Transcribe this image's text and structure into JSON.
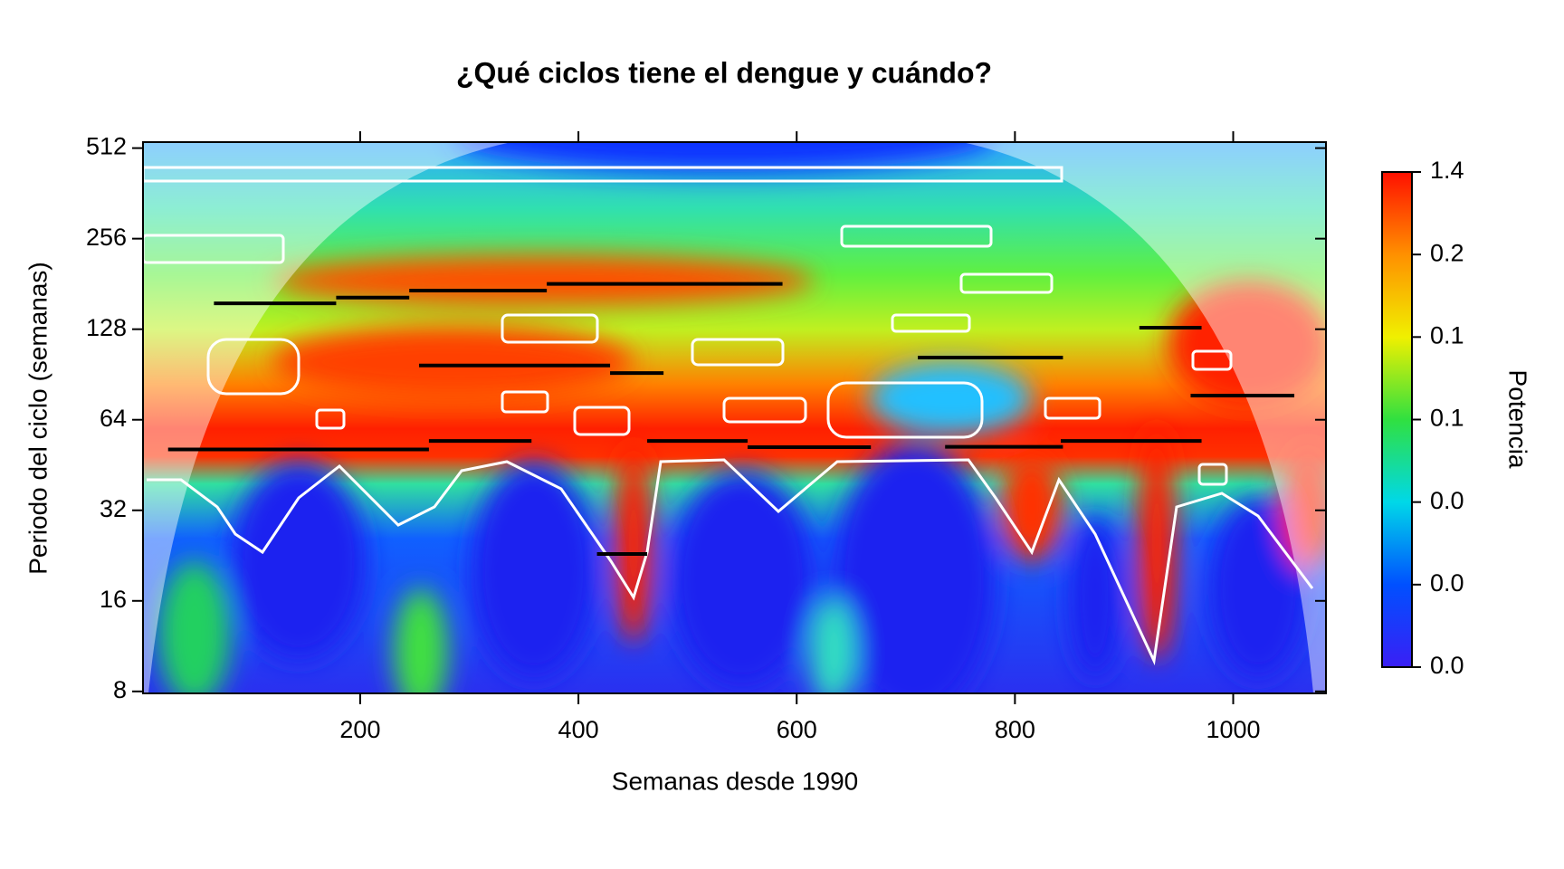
{
  "chart_data": {
    "type": "heatmap",
    "title": "¿Qué ciclos tiene el dengue y cuándo?",
    "x_label": "Semanas desde 1990",
    "y_label": "Periodo del ciclo (semanas)",
    "xlim": [
      1,
      1085
    ],
    "xticks": [
      200,
      400,
      600,
      800,
      1000
    ],
    "ylim": [
      7.88,
      536
    ],
    "yticks": [
      8,
      16,
      32,
      64,
      128,
      256,
      512
    ],
    "y_log2": true,
    "ridge_color": "#000000",
    "ridges": [
      {
        "x": [
          66,
          178
        ],
        "y": [
          156,
          156
        ]
      },
      {
        "x": [
          178,
          245
        ],
        "y": [
          163,
          163
        ]
      },
      {
        "x": [
          245,
          371
        ],
        "y": [
          172,
          172
        ]
      },
      {
        "x": [
          371,
          587
        ],
        "y": [
          181,
          181
        ]
      },
      {
        "x": [
          254,
          429
        ],
        "y": [
          97,
          97
        ]
      },
      {
        "x": [
          429,
          478
        ],
        "y": [
          91.5,
          91.5
        ]
      },
      {
        "x": [
          24,
          263
        ],
        "y": [
          51,
          51
        ]
      },
      {
        "x": [
          263,
          357
        ],
        "y": [
          54.4,
          54.4
        ]
      },
      {
        "x": [
          463,
          555
        ],
        "y": [
          54.4,
          54.4
        ]
      },
      {
        "x": [
          555,
          668
        ],
        "y": [
          51.9,
          51.9
        ]
      },
      {
        "x": [
          736,
          844
        ],
        "y": [
          52,
          52
        ]
      },
      {
        "x": [
          842,
          971
        ],
        "y": [
          54.4,
          54.4
        ]
      },
      {
        "x": [
          711,
          844
        ],
        "y": [
          103,
          103
        ]
      },
      {
        "x": [
          914,
          971
        ],
        "y": [
          129.5,
          129.5
        ]
      },
      {
        "x": [
          961,
          1056
        ],
        "y": [
          77,
          77
        ]
      },
      {
        "x": [
          417,
          463
        ],
        "y": [
          22.9,
          22.9
        ]
      }
    ],
    "colorbar": {
      "title": "Potencia",
      "colors": [
        "#3a1ff5",
        "#0050ff",
        "#00d8e8",
        "#30e040",
        "#f0f000",
        "#ff9000",
        "#ff1000"
      ],
      "labels": [
        "0.0",
        "0.0",
        "0.0",
        "0.1",
        "0.1",
        "0.2",
        "1.4"
      ]
    }
  }
}
